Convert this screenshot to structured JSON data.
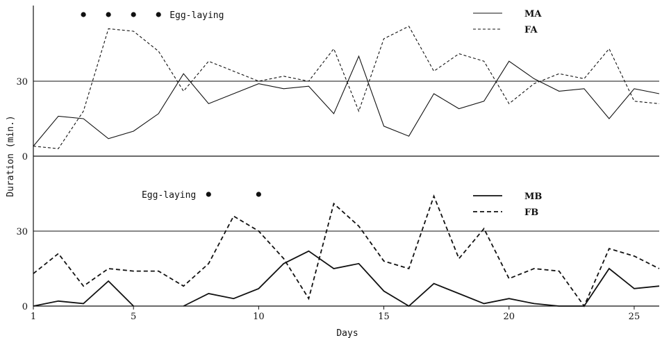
{
  "chart_data": {
    "type": "line",
    "xlabel": "Days",
    "ylabel": "Duration  (min.)",
    "x_ticks": [
      1,
      5,
      10,
      15,
      20,
      25
    ],
    "y_ticks": [
      0,
      30
    ],
    "xlim": [
      1,
      26
    ],
    "ylim": [
      0,
      60
    ],
    "grid": "horizontal line at 30 in each panel",
    "panels": [
      {
        "id": "A",
        "annotation": "Egg-laying",
        "egg_laying_days": [
          3,
          4,
          5,
          6
        ],
        "legend_position": "top-right",
        "series": [
          {
            "name": "MA",
            "style": "solid",
            "x": [
              1,
              2,
              3,
              4,
              5,
              6,
              7,
              8,
              9,
              10,
              11,
              12,
              13,
              14,
              15,
              16,
              17,
              18,
              19,
              20,
              21,
              22,
              23,
              24,
              25,
              26
            ],
            "y": [
              4,
              16,
              15,
              7,
              10,
              17,
              33,
              21,
              25,
              29,
              27,
              28,
              17,
              40,
              12,
              8,
              25,
              19,
              22,
              38,
              31,
              26,
              27,
              15,
              27,
              25
            ]
          },
          {
            "name": "FA",
            "style": "dashed",
            "x": [
              1,
              2,
              3,
              4,
              5,
              6,
              7,
              8,
              9,
              10,
              11,
              12,
              13,
              14,
              15,
              16,
              17,
              18,
              19,
              20,
              21,
              22,
              23,
              24,
              25,
              26
            ],
            "y": [
              4,
              3,
              18,
              51,
              50,
              42,
              26,
              38,
              34,
              30,
              32,
              30,
              43,
              18,
              47,
              52,
              34,
              41,
              38,
              21,
              29,
              33,
              31,
              43,
              22,
              21
            ]
          }
        ]
      },
      {
        "id": "B",
        "annotation": "Egg-laying",
        "egg_laying_days": [
          8,
          10
        ],
        "legend_position": "top-right",
        "series": [
          {
            "name": "MB",
            "style": "solid",
            "x": [
              1,
              2,
              3,
              4,
              5,
              7,
              8,
              9,
              10,
              11,
              12,
              13,
              14,
              15,
              16,
              17,
              18,
              19,
              20,
              21,
              22,
              23,
              24,
              25,
              26
            ],
            "y": [
              0,
              2,
              1,
              10,
              0,
              0,
              5,
              3,
              7,
              17,
              22,
              15,
              17,
              6,
              0,
              9,
              5,
              1,
              3,
              1,
              0,
              0,
              15,
              7,
              8
            ]
          },
          {
            "name": "FB",
            "style": "dashed",
            "x": [
              1,
              2,
              3,
              4,
              5,
              6,
              7,
              8,
              9,
              10,
              11,
              12,
              13,
              14,
              15,
              16,
              17,
              18,
              19,
              20,
              21,
              22,
              23,
              24,
              25,
              26
            ],
            "y": [
              13,
              21,
              8,
              15,
              14,
              14,
              8,
              17,
              36,
              30,
              19,
              3,
              41,
              32,
              18,
              15,
              44,
              19,
              31,
              11,
              15,
              14,
              0,
              23,
              20,
              15
            ]
          }
        ]
      }
    ]
  }
}
